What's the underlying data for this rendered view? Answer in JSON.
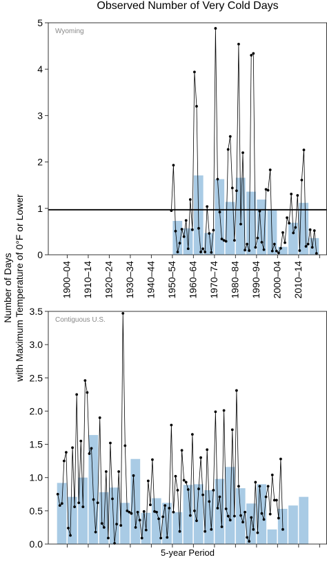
{
  "title": "Observed Number of Very Cold Days",
  "ylabel_line1": "Number of Days",
  "ylabel_line2": "with Maximum Temperature of 0°F or Lower",
  "xlabel": "5-year Period",
  "colors": {
    "bar": "#a9cbe5",
    "bar_edge": "#8fb8d8",
    "line": "#000000",
    "panel_label": "#888888"
  },
  "decade_labels": [
    "1900–04",
    "1910–14",
    "1920–24",
    "1930–34",
    "1940–44",
    "1950–54",
    "1960–64",
    "1970–74",
    "1980–84",
    "1990–94",
    "2000–04",
    "2010–14"
  ],
  "chart_data": [
    {
      "type": "bar",
      "panel_label": "Wyoming",
      "xlim": [
        1900,
        2020
      ],
      "ylim": [
        0,
        5
      ],
      "yticks": [
        "0",
        "1",
        "2",
        "3",
        "4",
        "5"
      ],
      "reference_line": 0.97,
      "bars": [
        {
          "start": 1950,
          "value": 0.73
        },
        {
          "start": 1955,
          "value": 0.57
        },
        {
          "start": 1960,
          "value": 1.71
        },
        {
          "start": 1965,
          "value": 0.47
        },
        {
          "start": 1970,
          "value": 1.63
        },
        {
          "start": 1975,
          "value": 1.14
        },
        {
          "start": 1980,
          "value": 1.66
        },
        {
          "start": 1985,
          "value": 1.36
        },
        {
          "start": 1990,
          "value": 1.19
        },
        {
          "start": 1995,
          "value": 0.97
        },
        {
          "start": 2000,
          "value": 0.17
        },
        {
          "start": 2005,
          "value": 0.69
        },
        {
          "start": 2010,
          "value": 1.12
        },
        {
          "start": 2015,
          "value": 0.36
        }
      ],
      "annual": {
        "start_year": 1949,
        "values": [
          0.95,
          1.93,
          0.51,
          0.06,
          0.25,
          0.55,
          0.39,
          0.74,
          0.13,
          1.19,
          0.54,
          3.94,
          3.2,
          0.57,
          0.06,
          0.13,
          0.06,
          1.04,
          0.46,
          0.05,
          0.53,
          4.88,
          1.63,
          0.92,
          0.34,
          0.31,
          0.29,
          2.27,
          2.55,
          1.44,
          0.31,
          1.38,
          4.54,
          0.66,
          2.2,
          0.1,
          0.23,
          0.09,
          4.3,
          4.34,
          0.16,
          0.36,
          0.94,
          0.27,
          0.11,
          1.41,
          1.39,
          1.83,
          0.08,
          0.23,
          0.08,
          0.04,
          0.14,
          0.48,
          0.26,
          0.8,
          0.68,
          1.31,
          0.47,
          0.59,
          1.28,
          0.09,
          1.61,
          2.26,
          0.18,
          0.23,
          0.54,
          0.16,
          0.52,
          0.03
        ]
      }
    },
    {
      "type": "bar",
      "panel_label": "Contiguous U.S.",
      "xlim": [
        1900,
        2020
      ],
      "ylim": [
        0,
        3.5
      ],
      "yticks": [
        "0.0",
        "0.5",
        "1.0",
        "1.5",
        "2.0",
        "2.5",
        "3.0",
        "3.5"
      ],
      "bars": [
        {
          "start": 1895,
          "value": 0.92
        },
        {
          "start": 1900,
          "value": 0.71
        },
        {
          "start": 1905,
          "value": 1.0
        },
        {
          "start": 1910,
          "value": 1.64
        },
        {
          "start": 1915,
          "value": 0.78
        },
        {
          "start": 1920,
          "value": 0.85
        },
        {
          "start": 1925,
          "value": 0.62
        },
        {
          "start": 1930,
          "value": 1.28
        },
        {
          "start": 1935,
          "value": 0.47
        },
        {
          "start": 1940,
          "value": 0.69
        },
        {
          "start": 1945,
          "value": 0.62
        },
        {
          "start": 1950,
          "value": 0.48
        },
        {
          "start": 1955,
          "value": 0.89
        },
        {
          "start": 1960,
          "value": 0.9
        },
        {
          "start": 1965,
          "value": 0.81
        },
        {
          "start": 1970,
          "value": 0.98
        },
        {
          "start": 1975,
          "value": 1.16
        },
        {
          "start": 1980,
          "value": 0.84
        },
        {
          "start": 1985,
          "value": 0.61
        },
        {
          "start": 1990,
          "value": 0.9
        },
        {
          "start": 1995,
          "value": 0.22
        },
        {
          "start": 2000,
          "value": 0.53
        },
        {
          "start": 2005,
          "value": 0.58
        },
        {
          "start": 2010,
          "value": 0.71
        }
      ],
      "annual": {
        "start_year": 1895,
        "values": [
          0.75,
          0.58,
          0.61,
          1.25,
          1.38,
          0.24,
          0.13,
          1.45,
          0.56,
          2.25,
          0.62,
          1.55,
          0.56,
          2.46,
          2.28,
          1.36,
          1.44,
          0.67,
          0.18,
          0.62,
          1.9,
          0.31,
          0.25,
          1.09,
          0.09,
          1.52,
          0.68,
          0.01,
          0.3,
          1.09,
          0.28,
          3.47,
          1.48,
          0.5,
          0.48,
          0.46,
          1.03,
          0.25,
          0.48,
          0.36,
          0.09,
          0.49,
          0.21,
          0.95,
          0.59,
          1.27,
          0.49,
          0.48,
          0.38,
          0.09,
          0.41,
          0.58,
          0.1,
          0.54,
          1.79,
          0.48,
          1.02,
          0.81,
          0.19,
          1.41,
          0.96,
          0.93,
          0.82,
          0.43,
          1.65,
          0.5,
          0.35,
          0.83,
          1.3,
          0.74,
          0.19,
          1.42,
          0.64,
          0.22,
          0.81,
          1.99,
          0.54,
          0.71,
          0.26,
          2.01,
          0.53,
          0.42,
          0.36,
          1.72,
          0.42,
          2.31,
          0.87,
          0.43,
          0.33,
          0.48,
          0.1,
          0.04,
          0.4,
          0.22,
          0.93,
          0.17,
          0.87,
          0.46,
          0.37,
          0.71,
          0.87,
          0.45,
          1.04,
          0.66,
          0.66,
          0.39,
          1.28,
          0.22
        ]
      }
    }
  ]
}
